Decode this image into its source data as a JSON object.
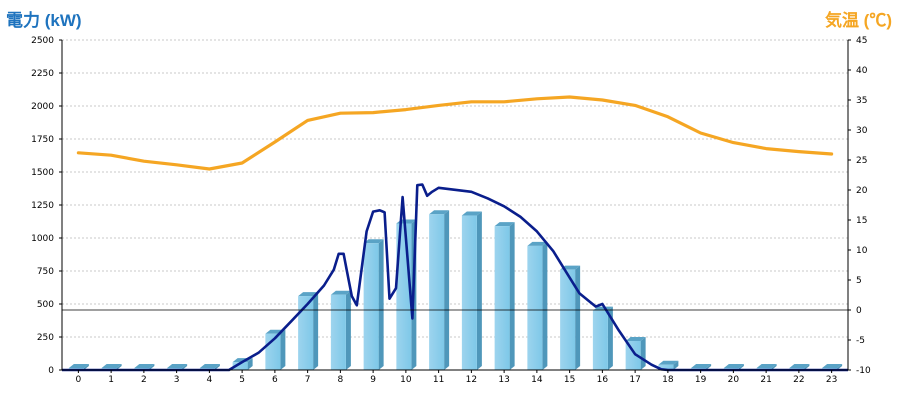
{
  "chart_data": {
    "type": "bar",
    "left_axis_title": "電力 (kW)",
    "right_axis_title": "気温 (℃)",
    "categories": [
      "0",
      "1",
      "2",
      "3",
      "4",
      "5",
      "6",
      "7",
      "8",
      "9",
      "10",
      "11",
      "12",
      "13",
      "14",
      "15",
      "16",
      "17",
      "18",
      "19",
      "20",
      "21",
      "22",
      "23"
    ],
    "ylim_left": [
      0,
      2500
    ],
    "yticks_left": [
      "0",
      "250",
      "500",
      "750",
      "1000",
      "1250",
      "1500",
      "1750",
      "2000",
      "2250",
      "2500"
    ],
    "ylim_right": [
      -10,
      45
    ],
    "yticks_right": [
      "-10",
      "-5",
      "0",
      "5",
      "10",
      "15",
      "20",
      "25",
      "30",
      "35",
      "40",
      "45"
    ],
    "grid": true,
    "series": [
      {
        "kind": "bar",
        "axis": "left",
        "values": [
          0,
          0,
          0,
          0,
          0,
          60,
          275,
          560,
          570,
          960,
          1110,
          1180,
          1170,
          1090,
          940,
          760,
          450,
          220,
          40,
          0,
          0,
          0,
          0,
          0
        ]
      },
      {
        "kind": "line",
        "axis": "left",
        "x": [
          0,
          4.6,
          5,
          5.5,
          6,
          6.5,
          7,
          7.5,
          7.8,
          7.95,
          8.1,
          8.2,
          8.35,
          8.5,
          8.8,
          9,
          9.2,
          9.35,
          9.5,
          9.7,
          9.9,
          10,
          10.2,
          10.35,
          10.5,
          10.65,
          10.8,
          11,
          11.5,
          12,
          12.5,
          13,
          13.5,
          14,
          14.5,
          15,
          15.3,
          15.6,
          15.8,
          16,
          16.5,
          17,
          17.5,
          17.8,
          18,
          18.5,
          23
        ],
        "y": [
          0,
          0,
          60,
          130,
          240,
          370,
          500,
          640,
          760,
          880,
          880,
          750,
          560,
          490,
          1050,
          1200,
          1210,
          1195,
          540,
          620,
          1310,
          1000,
          390,
          1400,
          1405,
          1320,
          1350,
          1380,
          1365,
          1350,
          1300,
          1240,
          1160,
          1050,
          900,
          700,
          580,
          520,
          480,
          500,
          300,
          120,
          40,
          5,
          0,
          0,
          0
        ]
      },
      {
        "kind": "line",
        "axis": "right",
        "x": [
          0,
          1,
          2,
          3,
          4,
          5,
          6,
          7,
          8,
          9,
          10,
          11,
          12,
          13,
          14,
          15,
          16,
          17,
          18,
          19,
          20,
          21,
          22,
          23
        ],
        "y": [
          26.2,
          25.8,
          24.8,
          24.2,
          23.5,
          24.5,
          28,
          31.6,
          32.8,
          32.9,
          33.4,
          34.1,
          34.7,
          34.7,
          35.2,
          35.5,
          35,
          34.1,
          32.2,
          29.5,
          27.9,
          26.9,
          26.4,
          26
        ]
      }
    ]
  }
}
